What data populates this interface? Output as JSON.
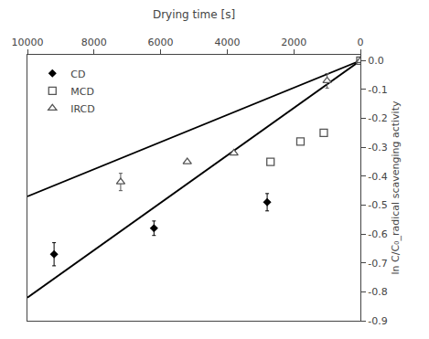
{
  "chart_data": {
    "type": "scatter",
    "xlabel": "Drying time [s]",
    "ylabel": "ln C/C₀_radical scavenging activity",
    "xlim": [
      10000,
      0
    ],
    "xticks": [
      10000,
      8000,
      6000,
      4000,
      2000,
      0
    ],
    "ylim": [
      -0.9,
      0.02
    ],
    "yticks": [
      {
        "value": 0.0,
        "label": "0.0"
      },
      -0.1,
      -0.2,
      -0.3,
      -0.4,
      -0.5,
      -0.6,
      -0.7,
      -0.8,
      -0.9
    ],
    "grid": false,
    "legend": "upper left",
    "series": [
      {
        "type": "line",
        "color": "#000000",
        "x": [
          0,
          10000
        ],
        "values": [
          0.0,
          -0.82
        ]
      },
      {
        "type": "line",
        "color": "#000000",
        "x": [
          0,
          10000
        ],
        "values": [
          0.0,
          -0.47
        ]
      },
      {
        "name": "CD",
        "type": "scatter",
        "marker": "diamond",
        "color": "#000000",
        "x": [
          9200,
          6200,
          2800,
          0
        ],
        "values": [
          -0.67,
          -0.58,
          -0.49,
          0.0
        ],
        "errors": [
          0.04,
          0.025,
          0.03,
          0.0
        ]
      },
      {
        "name": "MCD",
        "type": "scatter",
        "marker": "square-open",
        "color": "#555555",
        "x": [
          2700,
          1800,
          1100,
          0
        ],
        "values": [
          -0.35,
          -0.28,
          -0.25,
          0.0
        ],
        "errors": [
          0.0,
          0.0,
          0.0,
          0.0
        ]
      },
      {
        "name": "IRCD",
        "type": "scatter",
        "marker": "triangle-up-open",
        "color": "#555555",
        "x": [
          7200,
          5200,
          3800,
          1000,
          0
        ],
        "values": [
          -0.42,
          -0.35,
          -0.32,
          -0.07,
          0.0
        ],
        "errors": [
          0.03,
          0.0,
          0.0,
          0.025,
          0.0
        ]
      }
    ]
  }
}
